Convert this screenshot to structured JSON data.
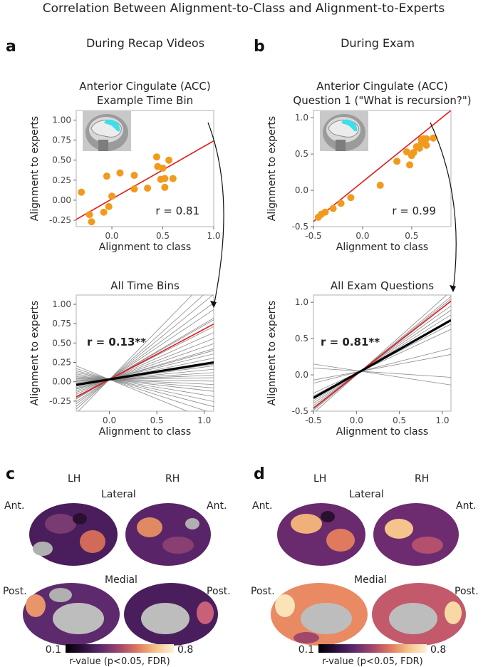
{
  "figure": {
    "title": "Correlation Between Alignment-to-Class and Alignment-to-Experts",
    "panels": {
      "a": {
        "letter": "a",
        "heading": "During Recap Videos"
      },
      "b": {
        "letter": "b",
        "heading": "During Exam"
      },
      "c": {
        "letter": "c"
      },
      "d": {
        "letter": "d"
      }
    },
    "brain_labels": {
      "lh": "LH",
      "rh": "RH",
      "lateral": "Lateral",
      "medial": "Medial",
      "ant": "Ant.",
      "post": "Post."
    },
    "colorbar": {
      "min": "0.1",
      "max": "0.8",
      "label": "r-value (p<0.05, FDR)",
      "colors": [
        "#000000",
        "#2d1140",
        "#5e2a6e",
        "#a1476c",
        "#e07a5f",
        "#f4c48a",
        "#fdf2d8"
      ]
    },
    "colors": {
      "fit_line": "#e41a1c",
      "points": "#f29a1d",
      "mean_line": "#000000",
      "bin_lines": "#8a8a8a",
      "roi": "#3de0e8"
    }
  },
  "chart_data": [
    {
      "id": "a-top",
      "type": "scatter",
      "title": "Anterior Cingulate (ACC)",
      "subtitle": "Example Time Bin",
      "xlabel": "Alignment to class",
      "ylabel": "Alignment to experts",
      "xlim": [
        -0.35,
        1.0
      ],
      "ylim": [
        -0.33,
        1.12
      ],
      "xticks": [
        "0.0",
        "0.5",
        "1.0"
      ],
      "xtick_values": [
        0.0,
        0.5,
        1.0
      ],
      "yticks": [
        "-0.25",
        "0.00",
        "0.25",
        "0.50",
        "0.75",
        "1.00"
      ],
      "ytick_values": [
        -0.25,
        0.0,
        0.25,
        0.5,
        0.75,
        1.0
      ],
      "points": [
        [
          -0.3,
          0.1
        ],
        [
          -0.22,
          -0.18
        ],
        [
          -0.2,
          -0.27
        ],
        [
          -0.08,
          -0.15
        ],
        [
          -0.03,
          -0.08
        ],
        [
          -0.05,
          0.3
        ],
        [
          0.0,
          0.05
        ],
        [
          0.08,
          0.34
        ],
        [
          0.22,
          0.31
        ],
        [
          0.22,
          0.14
        ],
        [
          0.35,
          0.15
        ],
        [
          0.44,
          0.54
        ],
        [
          0.45,
          0.42
        ],
        [
          0.5,
          0.4
        ],
        [
          0.48,
          0.26
        ],
        [
          0.52,
          0.16
        ],
        [
          0.52,
          0.27
        ],
        [
          0.56,
          0.5
        ],
        [
          0.6,
          0.27
        ]
      ],
      "fit": [
        [
          -0.35,
          -0.24
        ],
        [
          1.0,
          0.74
        ]
      ],
      "annotation": "r = 0.81"
    },
    {
      "id": "a-bottom",
      "type": "line",
      "title": "All Time Bins",
      "xlabel": "Alignment to class",
      "ylabel": "Alignment to experts",
      "xlim": [
        -0.35,
        1.1
      ],
      "ylim": [
        -0.38,
        1.12
      ],
      "xticks": [
        "0.0",
        "0.5",
        "1.0"
      ],
      "xtick_values": [
        0.0,
        0.5,
        1.0
      ],
      "yticks": [
        "-0.25",
        "0.00",
        "0.25",
        "0.50",
        "0.75",
        "1.00"
      ],
      "ytick_values": [
        -0.25,
        0.0,
        0.25,
        0.5,
        0.75,
        1.0
      ],
      "pivot": [
        0.0,
        0.03
      ],
      "slopes": [
        1.25,
        1.1,
        1.0,
        0.9,
        0.82,
        0.72,
        0.62,
        0.55,
        0.48,
        0.42,
        0.36,
        0.3,
        0.25,
        0.2,
        0.16,
        0.12,
        0.08,
        0.05,
        0.02,
        -0.02,
        -0.06,
        -0.1,
        -0.14,
        -0.2,
        -0.26,
        -0.32,
        -0.4,
        -0.5,
        0.7,
        0.34,
        0.18
      ],
      "highlight": {
        "slope": 0.65
      },
      "mean": {
        "slope": 0.2
      },
      "annotation": "r = 0.13**"
    },
    {
      "id": "b-top",
      "type": "scatter",
      "title": "Anterior Cingulate (ACC)",
      "subtitle": "Question 1 (\"What is recursion?\")",
      "xlabel": "Alignment to class",
      "ylabel": "Alignment to experts",
      "xlim": [
        -0.5,
        0.9
      ],
      "ylim": [
        -0.5,
        1.1
      ],
      "xticks": [
        "-0.5",
        "0.0",
        "0.5"
      ],
      "xtick_values": [
        -0.5,
        0.0,
        0.5
      ],
      "yticks": [
        "-0.5",
        "0.0",
        "0.5",
        "1.0"
      ],
      "ytick_values": [
        -0.5,
        0.0,
        0.5,
        1.0
      ],
      "points": [
        [
          -0.45,
          -0.37
        ],
        [
          -0.42,
          -0.33
        ],
        [
          -0.38,
          -0.3
        ],
        [
          -0.3,
          -0.25
        ],
        [
          -0.22,
          -0.18
        ],
        [
          -0.12,
          -0.1
        ],
        [
          0.18,
          0.07
        ],
        [
          0.35,
          0.4
        ],
        [
          0.45,
          0.53
        ],
        [
          0.48,
          0.35
        ],
        [
          0.5,
          0.48
        ],
        [
          0.52,
          0.52
        ],
        [
          0.55,
          0.6
        ],
        [
          0.58,
          0.58
        ],
        [
          0.6,
          0.65
        ],
        [
          0.6,
          0.7
        ],
        [
          0.62,
          0.71
        ],
        [
          0.65,
          0.71
        ],
        [
          0.65,
          0.62
        ],
        [
          0.72,
          0.72
        ]
      ],
      "fit": [
        [
          -0.5,
          -0.43
        ],
        [
          0.9,
          1.1
        ]
      ],
      "annotation": "r = 0.99"
    },
    {
      "id": "b-bottom",
      "type": "line",
      "title": "All Exam Questions",
      "xlabel": "Alignment to class",
      "ylabel": "Alignment to experts",
      "xlim": [
        -0.5,
        1.1
      ],
      "ylim": [
        -0.5,
        1.1
      ],
      "xticks": [
        "-0.5",
        "0.0",
        "0.5",
        "1.0"
      ],
      "xtick_values": [
        -0.5,
        0.0,
        0.5,
        1.0
      ],
      "yticks": [
        "-0.5",
        "0.0",
        "0.5",
        "1.0"
      ],
      "ytick_values": [
        -0.5,
        0.0,
        0.5,
        1.0
      ],
      "pivot": [
        0.05,
        0.05
      ],
      "slopes": [
        1.05,
        0.98,
        0.92,
        0.86,
        0.8,
        0.74,
        0.68,
        0.62,
        0.3,
        0.22,
        -0.08,
        -0.18,
        0.95,
        0.55
      ],
      "highlight": {
        "slope": 0.92
      },
      "mean": {
        "slope": 0.67
      },
      "annotation": "r = 0.81**"
    }
  ]
}
